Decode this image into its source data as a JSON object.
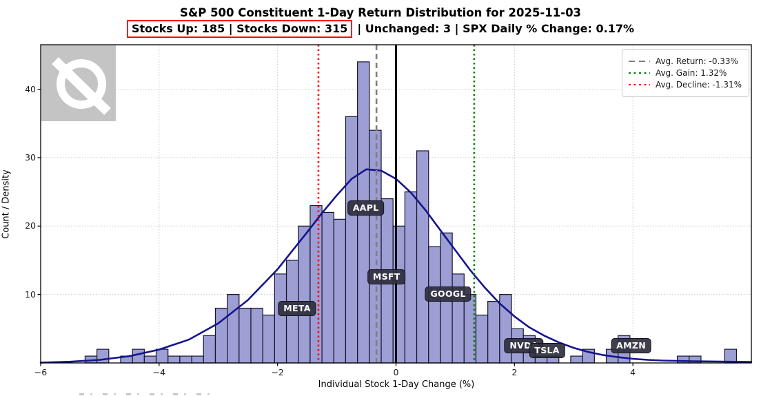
{
  "header": {
    "title": "S&P 500 Constituent 1-Day Return Distribution for 2025-11-03",
    "stats_boxed": "Stocks Up: 185 | Stocks Down: 315",
    "stats_rest": "| Unchanged: 3 | SPX Daily % Change: 0.17%"
  },
  "chart_data": {
    "type": "bar",
    "subtype": "histogram-with-density-curve",
    "title": "S&P 500 Constituent 1-Day Return Distribution for 2025-11-03",
    "xlabel": "Individual Stock 1-Day Change (%)",
    "ylabel": "Count / Density",
    "xlim": [
      -6,
      6
    ],
    "ylim": [
      0,
      46.5
    ],
    "grid": "dotted-both-axes",
    "bin_start": -5.25,
    "bin_width": 0.2,
    "counts": [
      1,
      2,
      0,
      1,
      2,
      1,
      2,
      1,
      1,
      1,
      4,
      8,
      10,
      8,
      8,
      7,
      13,
      15,
      20,
      23,
      22,
      21,
      36,
      44,
      34,
      24,
      20,
      25,
      31,
      17,
      19,
      13,
      10,
      7,
      9,
      10,
      5,
      4,
      1,
      1,
      0,
      1,
      2,
      0,
      2,
      4,
      0,
      0,
      0,
      0,
      1,
      1,
      0,
      0,
      2
    ],
    "bar_fill": "#9d9ed3",
    "bar_edge": "#14142e",
    "curve_color": "#14148c",
    "curve": [
      [
        -6,
        0.05
      ],
      [
        -5.5,
        0.18
      ],
      [
        -5,
        0.45
      ],
      [
        -4.5,
        1.0
      ],
      [
        -4,
        1.95
      ],
      [
        -3.5,
        3.4
      ],
      [
        -3,
        5.8
      ],
      [
        -2.5,
        9.2
      ],
      [
        -2,
        13.7
      ],
      [
        -1.75,
        16.4
      ],
      [
        -1.5,
        19.1
      ],
      [
        -1.25,
        21.9
      ],
      [
        -1,
        24.5
      ],
      [
        -0.75,
        26.9
      ],
      [
        -0.5,
        28.3
      ],
      [
        -0.25,
        28.1
      ],
      [
        0,
        26.9
      ],
      [
        0.25,
        24.9
      ],
      [
        0.5,
        22.3
      ],
      [
        0.75,
        19.4
      ],
      [
        1,
        16.5
      ],
      [
        1.25,
        13.6
      ],
      [
        1.5,
        11.0
      ],
      [
        1.75,
        8.7
      ],
      [
        2,
        6.8
      ],
      [
        2.25,
        5.2
      ],
      [
        2.5,
        4.0
      ],
      [
        2.75,
        3.0
      ],
      [
        3,
        2.2
      ],
      [
        3.25,
        1.6
      ],
      [
        3.5,
        1.15
      ],
      [
        3.75,
        0.85
      ],
      [
        4,
        0.6
      ],
      [
        4.25,
        0.45
      ],
      [
        4.5,
        0.35
      ],
      [
        5,
        0.25
      ],
      [
        5.5,
        0.2
      ],
      [
        6,
        0.15
      ]
    ],
    "vlines": [
      {
        "name": "zero-line",
        "x": 0,
        "color": "#000000",
        "style": "solid",
        "width": 3
      },
      {
        "name": "avg-return-line",
        "x": -0.33,
        "color": "#7f7f7f",
        "style": "dashed",
        "width": 2.6
      },
      {
        "name": "avg-gain-line",
        "x": 1.32,
        "color": "#008000",
        "style": "dotted",
        "width": 2.6
      },
      {
        "name": "avg-decline-line",
        "x": -1.31,
        "color": "#ff0000",
        "style": "dotted",
        "width": 2.6
      }
    ],
    "xticks": [
      {
        "v": -6,
        "label": "−6"
      },
      {
        "v": -4,
        "label": "−4"
      },
      {
        "v": -2,
        "label": "−2"
      },
      {
        "v": 0,
        "label": "0"
      },
      {
        "v": 2,
        "label": "2"
      },
      {
        "v": 4,
        "label": "4"
      }
    ],
    "yticks": [
      {
        "v": 10,
        "label": "10"
      },
      {
        "v": 20,
        "label": "20"
      },
      {
        "v": 30,
        "label": "30"
      },
      {
        "v": 40,
        "label": "40"
      }
    ],
    "annotations": [
      {
        "label": "META",
        "x": -1.67,
        "y": 8.0
      },
      {
        "label": "AAPL",
        "x": -0.51,
        "y": 22.6
      },
      {
        "label": "MSFT",
        "x": -0.16,
        "y": 12.6
      },
      {
        "label": "GOOGL",
        "x": 0.88,
        "y": 10.1
      },
      {
        "label": "NVDA",
        "x": 2.16,
        "y": 2.5
      },
      {
        "label": "TSLA",
        "x": 2.55,
        "y": 1.8
      },
      {
        "label": "AMZN",
        "x": 3.97,
        "y": 2.5
      }
    ],
    "legend_position": "upper-right"
  },
  "legend": {
    "items": [
      {
        "label": "Avg. Return: -0.33%",
        "color": "#7f7f7f",
        "style": "dashed"
      },
      {
        "label": "Avg. Gain: 1.32%",
        "color": "#008000",
        "style": "dotted"
      },
      {
        "label": "Avg. Decline: -1.31%",
        "color": "#ff0000",
        "style": "dotted"
      }
    ]
  },
  "colors": {
    "highlight_box": "#ff0000",
    "grid": "#c9c9c9",
    "annotation_bg": "#2f2f3e",
    "watermark_bg": "#c4c4c4"
  }
}
